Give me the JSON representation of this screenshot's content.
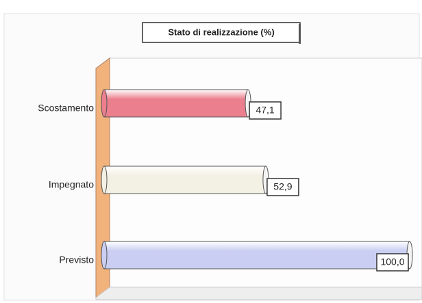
{
  "chart_data": {
    "type": "bar",
    "orientation": "horizontal",
    "title": "Stato di realizzazione (%)",
    "categories": [
      "Scostamento",
      "Impegnato",
      "Previsto"
    ],
    "values": [
      47.1,
      52.9,
      100.0
    ],
    "value_labels": [
      "47,1",
      "52,9",
      "100,0"
    ],
    "colors": [
      "#ec7f8e",
      "#f3f1e4",
      "#c9cef2"
    ],
    "xlim": [
      0,
      100
    ]
  }
}
